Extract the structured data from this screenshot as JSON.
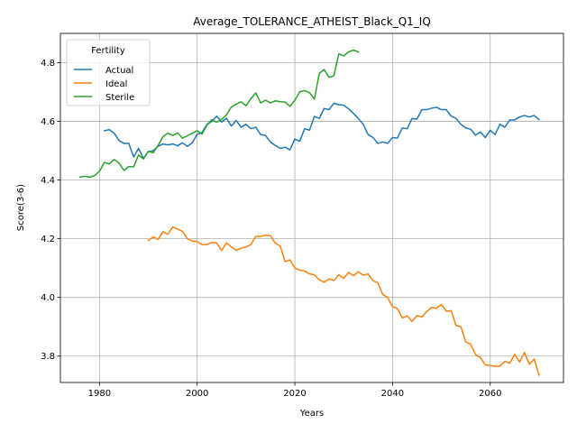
{
  "chart_data": {
    "type": "line",
    "title": "Average_TOLERANCE_ATHEIST_Black_Q1_IQ",
    "xlabel": "Years",
    "ylabel": "Score(3-6)",
    "xlim": [
      1972,
      2075
    ],
    "ylim": [
      3.71,
      4.9
    ],
    "xticks": [
      1980,
      2000,
      2020,
      2040,
      2060
    ],
    "yticks": [
      3.8,
      4.0,
      4.2,
      4.4,
      4.6,
      4.8
    ],
    "xtick_labels": [
      "1980",
      "2000",
      "2020",
      "2040",
      "2060"
    ],
    "ytick_labels": [
      "3.8",
      "4.0",
      "4.2",
      "4.4",
      "4.6",
      "4.8"
    ],
    "grid": true,
    "legend": {
      "title": "Fertility",
      "placement": "top-left"
    },
    "series": [
      {
        "name": "Actual",
        "color": "#1f77b4",
        "x": [
          1981,
          1982,
          1983,
          1984,
          1985,
          1986,
          1987,
          1988,
          1989,
          1990,
          1991,
          1992,
          1993,
          1994,
          1995,
          1996,
          1997,
          1998,
          1999,
          2000,
          2001,
          2002,
          2003,
          2004,
          2005,
          2006,
          2007,
          2008,
          2009,
          2010,
          2011,
          2012,
          2013,
          2014,
          2015,
          2016,
          2017,
          2018,
          2019,
          2020,
          2021,
          2022,
          2023,
          2024,
          2025,
          2026,
          2027,
          2028,
          2029,
          2030,
          2031,
          2032,
          2033,
          2034,
          2035,
          2036,
          2037,
          2038,
          2039,
          2040,
          2041,
          2042,
          2043,
          2044,
          2045,
          2046,
          2047,
          2048,
          2049,
          2050,
          2051,
          2052,
          2053,
          2054,
          2055,
          2056,
          2057,
          2058,
          2059,
          2060,
          2061,
          2062,
          2063,
          2064,
          2065,
          2066,
          2067,
          2068,
          2069,
          2070
        ],
        "y": [
          4.568,
          4.572,
          4.56,
          4.535,
          4.525,
          4.525,
          4.479,
          4.508,
          4.474,
          4.497,
          4.5,
          4.515,
          4.523,
          4.52,
          4.523,
          4.517,
          4.527,
          4.515,
          4.527,
          4.556,
          4.562,
          4.59,
          4.6,
          4.618,
          4.598,
          4.611,
          4.584,
          4.603,
          4.58,
          4.59,
          4.575,
          4.58,
          4.555,
          4.552,
          4.53,
          4.518,
          4.508,
          4.512,
          4.503,
          4.54,
          4.532,
          4.575,
          4.57,
          4.617,
          4.61,
          4.644,
          4.64,
          4.662,
          4.657,
          4.655,
          4.643,
          4.627,
          4.61,
          4.59,
          4.555,
          4.545,
          4.525,
          4.53,
          4.525,
          4.545,
          4.543,
          4.578,
          4.575,
          4.61,
          4.608,
          4.64,
          4.64,
          4.645,
          4.648,
          4.64,
          4.64,
          4.618,
          4.61,
          4.59,
          4.578,
          4.573,
          4.553,
          4.564,
          4.545,
          4.57,
          4.555,
          4.59,
          4.58,
          4.605,
          4.605,
          4.615,
          4.62,
          4.615,
          4.62,
          4.606
        ]
      },
      {
        "name": "Ideal",
        "color": "#ff7f0e",
        "x": [
          1990,
          1991,
          1992,
          1993,
          1994,
          1995,
          1996,
          1997,
          1998,
          1999,
          2000,
          2001,
          2002,
          2003,
          2004,
          2005,
          2006,
          2007,
          2008,
          2009,
          2010,
          2011,
          2012,
          2013,
          2014,
          2015,
          2016,
          2017,
          2018,
          2019,
          2020,
          2021,
          2022,
          2023,
          2024,
          2025,
          2026,
          2027,
          2028,
          2029,
          2030,
          2031,
          2032,
          2033,
          2034,
          2035,
          2036,
          2037,
          2038,
          2039,
          2040,
          2041,
          2042,
          2043,
          2044,
          2045,
          2046,
          2047,
          2048,
          2049,
          2050,
          2051,
          2052,
          2053,
          2054,
          2055,
          2056,
          2057,
          2058,
          2059,
          2060,
          2061,
          2062,
          2063,
          2064,
          2065,
          2066,
          2067,
          2068,
          2069,
          2070
        ],
        "y": [
          4.194,
          4.206,
          4.198,
          4.224,
          4.215,
          4.24,
          4.233,
          4.225,
          4.2,
          4.192,
          4.19,
          4.18,
          4.18,
          4.188,
          4.185,
          4.16,
          4.186,
          4.172,
          4.16,
          4.168,
          4.172,
          4.18,
          4.208,
          4.208,
          4.212,
          4.21,
          4.185,
          4.175,
          4.122,
          4.128,
          4.1,
          4.093,
          4.09,
          4.08,
          4.077,
          4.06,
          4.052,
          4.063,
          4.058,
          4.077,
          4.065,
          4.085,
          4.074,
          4.087,
          4.076,
          4.08,
          4.057,
          4.05,
          4.01,
          4.0,
          3.968,
          3.962,
          3.93,
          3.937,
          3.918,
          3.938,
          3.933,
          3.952,
          3.966,
          3.963,
          3.976,
          3.953,
          3.955,
          3.904,
          3.9,
          3.848,
          3.84,
          3.805,
          3.795,
          3.77,
          3.768,
          3.765,
          3.766,
          3.782,
          3.776,
          3.806,
          3.78,
          3.812,
          3.772,
          3.79,
          3.735
        ]
      },
      {
        "name": "Sterile",
        "color": "#2ca02c",
        "x": [
          1976,
          1977,
          1978,
          1979,
          1980,
          1981,
          1982,
          1983,
          1984,
          1985,
          1986,
          1987,
          1988,
          1989,
          1990,
          1991,
          1992,
          1993,
          1994,
          1995,
          1996,
          1997,
          1998,
          1999,
          2000,
          2001,
          2002,
          2003,
          2004,
          2005,
          2006,
          2007,
          2008,
          2009,
          2010,
          2011,
          2012,
          2013,
          2014,
          2015,
          2016,
          2017,
          2018,
          2019,
          2020,
          2021,
          2022,
          2023,
          2024,
          2025,
          2026,
          2027,
          2028,
          2029,
          2030,
          2031,
          2032,
          2033
        ],
        "y": [
          4.41,
          4.413,
          4.41,
          4.415,
          4.43,
          4.46,
          4.455,
          4.47,
          4.458,
          4.433,
          4.446,
          4.445,
          4.485,
          4.472,
          4.498,
          4.493,
          4.518,
          4.548,
          4.56,
          4.552,
          4.561,
          4.543,
          4.551,
          4.56,
          4.568,
          4.557,
          4.587,
          4.606,
          4.597,
          4.607,
          4.622,
          4.649,
          4.659,
          4.667,
          4.653,
          4.677,
          4.697,
          4.663,
          4.672,
          4.663,
          4.67,
          4.667,
          4.666,
          4.651,
          4.672,
          4.701,
          4.705,
          4.698,
          4.676,
          4.764,
          4.777,
          4.75,
          4.756,
          4.83,
          4.823,
          4.837,
          4.843,
          4.837
        ]
      }
    ]
  }
}
